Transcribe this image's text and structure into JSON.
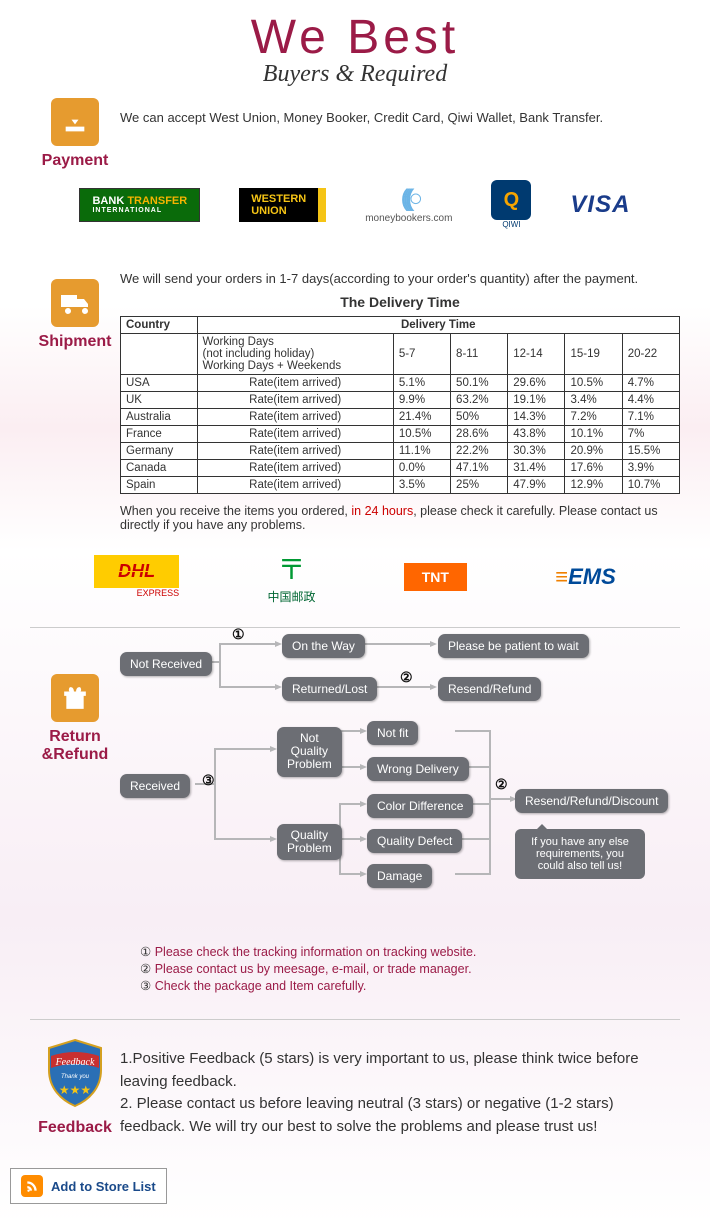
{
  "header": {
    "title": "We   Best",
    "subtitle": "Buyers & Required"
  },
  "payment": {
    "label": "Payment",
    "text": "We can accept West Union, Money Booker, Credit Card, Qiwi Wallet, Bank Transfer.",
    "logos": {
      "bank_transfer_a": "BANK",
      "bank_transfer_b": "TRANSFER",
      "bank_transfer_sub": "INTERNATIONAL",
      "western_a": "WESTERN",
      "western_b": "UNION",
      "moneybookers": "moneybookers.com",
      "qiwi": "Q",
      "qiwi_sub": "QIWI",
      "visa": "VISA"
    }
  },
  "shipment": {
    "label": "Shipment",
    "intro": "We will send your orders in 1-7 days(according to your order's quantity) after the payment.",
    "table_title": "The Delivery Time",
    "columns": {
      "country": "Country",
      "delivery_time": "Delivery Time"
    },
    "working_days_a": "Working Days",
    "working_days_b": "(not including holiday)",
    "working_days_c": "Working Days + Weekends",
    "time_headers": [
      "5-7",
      "8-11",
      "12-14",
      "15-19",
      "20-22"
    ],
    "rate_label": "Rate(item arrived)",
    "rows": [
      {
        "country": "USA",
        "vals": [
          "5.1%",
          "50.1%",
          "29.6%",
          "10.5%",
          "4.7%"
        ]
      },
      {
        "country": "UK",
        "vals": [
          "9.9%",
          "63.2%",
          "19.1%",
          "3.4%",
          "4.4%"
        ]
      },
      {
        "country": "Australia",
        "vals": [
          "21.4%",
          "50%",
          "14.3%",
          "7.2%",
          "7.1%"
        ]
      },
      {
        "country": "France",
        "vals": [
          "10.5%",
          "28.6%",
          "43.8%",
          "10.1%",
          "7%"
        ]
      },
      {
        "country": "Germany",
        "vals": [
          "11.1%",
          "22.2%",
          "30.3%",
          "20.9%",
          "15.5%"
        ]
      },
      {
        "country": "Canada",
        "vals": [
          "0.0%",
          "47.1%",
          "31.4%",
          "17.6%",
          "3.9%"
        ]
      },
      {
        "country": "Spain",
        "vals": [
          "3.5%",
          "25%",
          "47.9%",
          "12.9%",
          "10.7%"
        ]
      }
    ],
    "check_note_a": "When you receive the items you ordered, ",
    "check_note_hl": "in 24 hours",
    "check_note_b": ", please check it carefully. Please contact us directly if you have any problems.",
    "ship_logos": {
      "dhl": "DHL",
      "dhl_sub": "EXPRESS",
      "chinapost": "中国邮政",
      "tnt": "TNT",
      "ems": "EMS"
    }
  },
  "return": {
    "label": "Return &Refund",
    "nodes": {
      "not_received": "Not Received",
      "received": "Received",
      "on_the_way": "On the Way",
      "returned_lost": "Returned/Lost",
      "not_quality": "Not\nQuality\nProblem",
      "quality": "Quality\nProblem",
      "not_fit": "Not fit",
      "wrong_delivery": "Wrong Delivery",
      "color_diff": "Color Difference",
      "quality_defect": "Quality Defect",
      "damage": "Damage",
      "patient": "Please be patient to wait",
      "resend_refund": "Resend/Refund",
      "resend_discount": "Resend/Refund/Discount",
      "speech": "If you have any else requirements, you could also tell us!"
    },
    "circles": {
      "1": "①",
      "2": "②",
      "3": "③"
    },
    "legend": {
      "1": "Please check the tracking information on tracking website.",
      "2": "Please contact us by meesage, e-mail, or trade manager.",
      "3": "Check the package and Item carefully."
    }
  },
  "feedback": {
    "label": "Feedback",
    "badge_text": "Feedback",
    "badge_sub": "Thank you",
    "line1": "1.Positive Feedback (5 stars) is very important to us, please think twice before leaving feedback.",
    "line2": "2. Please contact us before leaving neutral (3 stars) or negative (1-2 stars) feedback. We will try our best to solve the problems and please trust us!"
  },
  "footer": {
    "add_store": "Add to Store List"
  },
  "colors": {
    "brand": "#9b1b47",
    "icon_bg": "#e69b2f",
    "node_bg": "#6c6e74"
  }
}
